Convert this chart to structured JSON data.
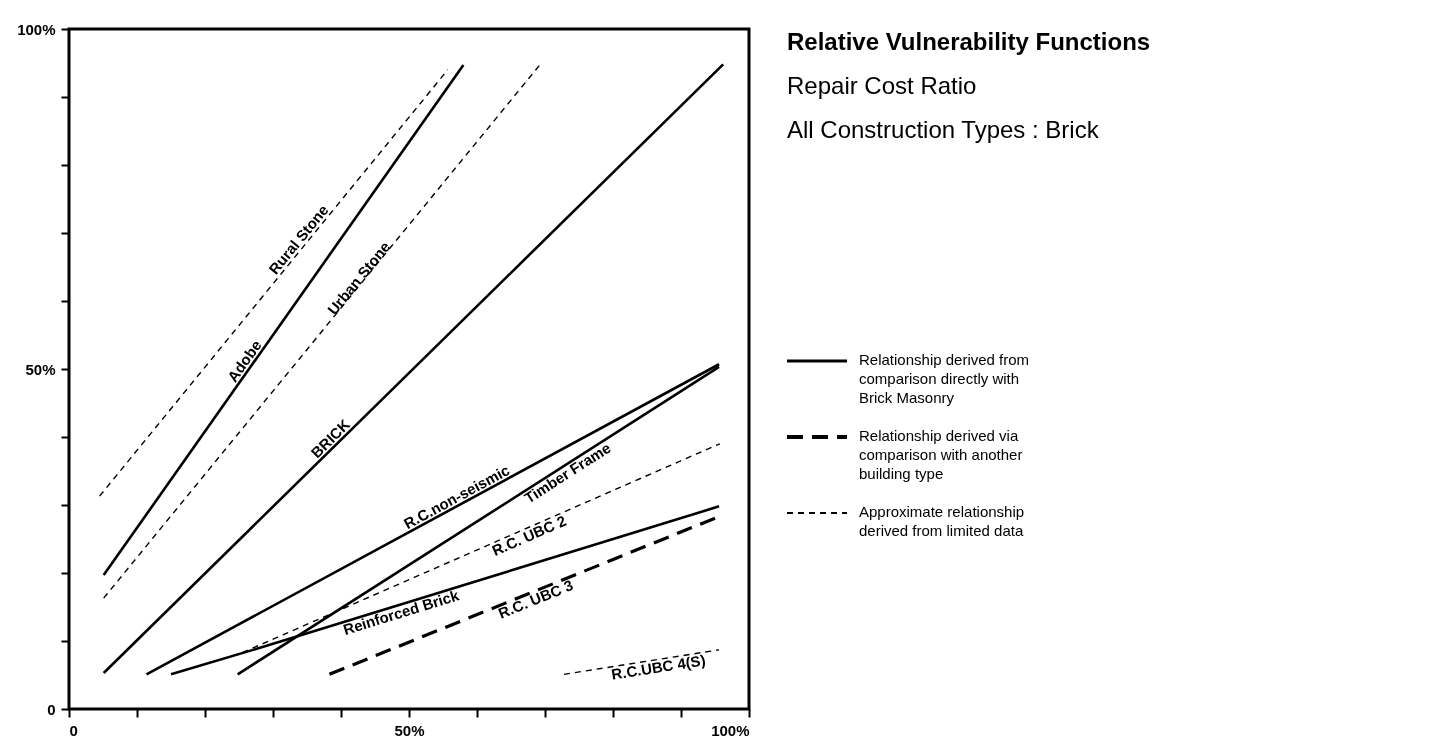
{
  "chart_data": {
    "type": "line",
    "title": "Relative Vulnerability Functions",
    "subtitle": "Repair Cost Ratio\nAll Construction Types : Brick",
    "xlim": [
      0,
      100
    ],
    "ylim": [
      0,
      100
    ],
    "xticks": [
      {
        "value": 0,
        "label": "0"
      },
      {
        "value": 10,
        "label": null
      },
      {
        "value": 20,
        "label": null
      },
      {
        "value": 30,
        "label": null
      },
      {
        "value": 40,
        "label": null
      },
      {
        "value": 50,
        "label": "50%"
      },
      {
        "value": 60,
        "label": null
      },
      {
        "value": 70,
        "label": null
      },
      {
        "value": 80,
        "label": null
      },
      {
        "value": 90,
        "label": null
      },
      {
        "value": 100,
        "label": "100%"
      }
    ],
    "yticks": [
      {
        "value": 0,
        "label": "0"
      },
      {
        "value": 10,
        "label": null
      },
      {
        "value": 20,
        "label": null
      },
      {
        "value": 30,
        "label": null
      },
      {
        "value": 40,
        "label": null
      },
      {
        "value": 50,
        "label": "50%"
      },
      {
        "value": 60,
        "label": null
      },
      {
        "value": 70,
        "label": null
      },
      {
        "value": 80,
        "label": null
      },
      {
        "value": 90,
        "label": null
      },
      {
        "value": 100,
        "label": "100%"
      }
    ],
    "grid": false,
    "marker": "none",
    "legend": "right",
    "series": [
      {
        "name": "Rural Stone",
        "color": "#000000",
        "line_style": "dotted",
        "x": [
          4.5,
          55.7
        ],
        "values": [
          31.3,
          94
        ]
      },
      {
        "name": "Adobe",
        "color": "#000000",
        "line_style": "solid",
        "x": [
          5.1,
          58
        ],
        "values": [
          19.7,
          94.7
        ]
      },
      {
        "name": "Urban Stone",
        "color": "#000000",
        "line_style": "dotted",
        "x": [
          5.1,
          69.3
        ],
        "values": [
          16.3,
          94.8
        ]
      },
      {
        "name": "BRICK",
        "color": "#000000",
        "line_style": "solid",
        "x": [
          5.1,
          96.2
        ],
        "values": [
          5.3,
          94.8
        ]
      },
      {
        "name": "R.C.non-seismic",
        "color": "#000000",
        "line_style": "solid",
        "x": [
          11.4,
          95.6
        ],
        "values": [
          5.1,
          50.7
        ]
      },
      {
        "name": "Timber Frame",
        "color": "#000000",
        "line_style": "solid",
        "x": [
          24.8,
          95.6
        ],
        "values": [
          5.1,
          50.3
        ]
      },
      {
        "name": "R.C. UBC 2",
        "color": "#000000",
        "line_style": "dotted",
        "x": [
          25.5,
          95.7
        ],
        "values": [
          8.3,
          39
        ]
      },
      {
        "name": "Reinforced Brick",
        "color": "#000000",
        "line_style": "solid",
        "x": [
          15,
          28.1,
          95.6
        ],
        "values": [
          5.1,
          9,
          29.8
        ]
      },
      {
        "name": "R.C. UBC 3",
        "color": "#000000",
        "line_style": "dashed",
        "x": [
          38.3,
          95.6
        ],
        "values": [
          5.1,
          28.3
        ]
      },
      {
        "name": "R.C.UBC 4(S)",
        "color": "#000000",
        "line_style": "dotted",
        "x": [
          72.8,
          95.6
        ],
        "values": [
          5.1,
          8.7
        ]
      }
    ],
    "annotations": [
      "Relationship derived from\ncomparison directly  with\nBrick Masonry",
      "Relationship derived via\ncomparison with another\nbuilding type",
      "Approximate relationship\nderived from limited data"
    ]
  }
}
